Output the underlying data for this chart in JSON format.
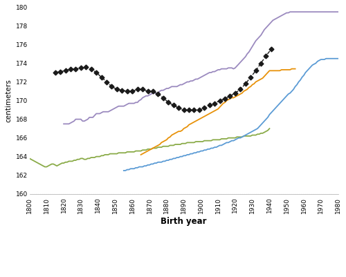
{
  "xlabel": "Birth year",
  "ylabel": "centimeters",
  "ylim": [
    160,
    180
  ],
  "xlim": [
    1800,
    1980
  ],
  "netherlands_color": "#c0736a",
  "italy_color": "#5b9bd5",
  "france_color": "#8aab48",
  "sweden_color": "#9b8abf",
  "us_soldiers_color": "#1a1a1a",
  "netherlands2_color": "#e8920a",
  "france": {
    "x": [
      1800,
      1801,
      1802,
      1803,
      1804,
      1805,
      1806,
      1807,
      1808,
      1809,
      1810,
      1811,
      1812,
      1813,
      1814,
      1815,
      1816,
      1817,
      1818,
      1819,
      1820,
      1821,
      1822,
      1823,
      1824,
      1825,
      1826,
      1827,
      1828,
      1829,
      1830,
      1831,
      1832,
      1833,
      1834,
      1835,
      1836,
      1837,
      1838,
      1839,
      1840,
      1841,
      1842,
      1843,
      1844,
      1845,
      1846,
      1847,
      1848,
      1849,
      1850,
      1851,
      1852,
      1853,
      1854,
      1855,
      1856,
      1857,
      1858,
      1859,
      1860,
      1861,
      1862,
      1863,
      1864,
      1865,
      1866,
      1867,
      1868,
      1869,
      1870,
      1871,
      1872,
      1873,
      1874,
      1875,
      1876,
      1877,
      1878,
      1879,
      1880,
      1881,
      1882,
      1883,
      1884,
      1885,
      1886,
      1887,
      1888,
      1889,
      1890,
      1891,
      1892,
      1893,
      1894,
      1895,
      1896,
      1897,
      1898,
      1899,
      1900,
      1901,
      1902,
      1903,
      1904,
      1905,
      1906,
      1907,
      1908,
      1909,
      1910,
      1911,
      1912,
      1913,
      1914,
      1915,
      1916,
      1917,
      1918,
      1919,
      1920,
      1921,
      1922,
      1923,
      1924,
      1925,
      1926,
      1927,
      1928,
      1929,
      1930,
      1931,
      1932,
      1933,
      1934,
      1935,
      1936,
      1937,
      1938,
      1939,
      1940
    ],
    "y": [
      163.8,
      163.7,
      163.6,
      163.5,
      163.4,
      163.3,
      163.2,
      163.1,
      163.0,
      162.9,
      162.9,
      163.0,
      163.1,
      163.2,
      163.2,
      163.1,
      163.0,
      163.1,
      163.2,
      163.3,
      163.3,
      163.4,
      163.4,
      163.5,
      163.5,
      163.5,
      163.6,
      163.6,
      163.7,
      163.7,
      163.8,
      163.8,
      163.7,
      163.7,
      163.8,
      163.8,
      163.9,
      163.9,
      163.9,
      164.0,
      164.0,
      164.0,
      164.1,
      164.1,
      164.2,
      164.2,
      164.2,
      164.3,
      164.3,
      164.3,
      164.3,
      164.3,
      164.4,
      164.4,
      164.4,
      164.4,
      164.4,
      164.5,
      164.5,
      164.5,
      164.5,
      164.5,
      164.6,
      164.6,
      164.6,
      164.6,
      164.7,
      164.7,
      164.7,
      164.8,
      164.8,
      164.8,
      164.9,
      164.9,
      164.9,
      165.0,
      165.0,
      165.0,
      165.1,
      165.1,
      165.1,
      165.1,
      165.2,
      165.2,
      165.2,
      165.3,
      165.3,
      165.3,
      165.3,
      165.4,
      165.4,
      165.4,
      165.5,
      165.5,
      165.5,
      165.5,
      165.5,
      165.6,
      165.6,
      165.6,
      165.6,
      165.6,
      165.7,
      165.7,
      165.7,
      165.7,
      165.7,
      165.8,
      165.8,
      165.8,
      165.8,
      165.8,
      165.9,
      165.9,
      165.9,
      165.9,
      166.0,
      166.0,
      166.0,
      166.0,
      166.0,
      166.1,
      166.1,
      166.1,
      166.1,
      166.2,
      166.2,
      166.2,
      166.2,
      166.2,
      166.3,
      166.3,
      166.3,
      166.4,
      166.4,
      166.5,
      166.5,
      166.6,
      166.7,
      166.8,
      167.0
    ]
  },
  "sweden": {
    "x": [
      1820,
      1821,
      1822,
      1823,
      1824,
      1825,
      1826,
      1827,
      1828,
      1829,
      1830,
      1831,
      1832,
      1833,
      1834,
      1835,
      1836,
      1837,
      1838,
      1839,
      1840,
      1841,
      1842,
      1843,
      1844,
      1845,
      1846,
      1847,
      1848,
      1849,
      1850,
      1851,
      1852,
      1853,
      1854,
      1855,
      1856,
      1857,
      1858,
      1859,
      1860,
      1861,
      1862,
      1863,
      1864,
      1865,
      1866,
      1867,
      1868,
      1869,
      1870,
      1871,
      1872,
      1873,
      1874,
      1875,
      1876,
      1877,
      1878,
      1879,
      1880,
      1881,
      1882,
      1883,
      1884,
      1885,
      1886,
      1887,
      1888,
      1889,
      1890,
      1891,
      1892,
      1893,
      1894,
      1895,
      1896,
      1897,
      1898,
      1899,
      1900,
      1901,
      1902,
      1903,
      1904,
      1905,
      1906,
      1907,
      1908,
      1909,
      1910,
      1911,
      1912,
      1913,
      1914,
      1915,
      1916,
      1917,
      1918,
      1919,
      1920,
      1921,
      1922,
      1923,
      1924,
      1925,
      1926,
      1927,
      1928,
      1929,
      1930,
      1931,
      1932,
      1933,
      1934,
      1935,
      1936,
      1937,
      1938,
      1939,
      1940,
      1941,
      1942,
      1943,
      1944,
      1945,
      1946,
      1947,
      1948,
      1949,
      1950,
      1951,
      1952,
      1953,
      1954,
      1955,
      1956,
      1957,
      1958,
      1959,
      1960,
      1965,
      1970,
      1975,
      1980
    ],
    "y": [
      167.5,
      167.5,
      167.5,
      167.5,
      167.6,
      167.7,
      167.8,
      168.0,
      168.0,
      168.0,
      168.0,
      167.8,
      167.8,
      167.9,
      168.0,
      168.2,
      168.2,
      168.2,
      168.4,
      168.6,
      168.6,
      168.6,
      168.7,
      168.8,
      168.8,
      168.8,
      168.8,
      168.9,
      169.0,
      169.1,
      169.2,
      169.3,
      169.4,
      169.4,
      169.4,
      169.4,
      169.5,
      169.6,
      169.7,
      169.7,
      169.7,
      169.7,
      169.8,
      169.8,
      170.0,
      170.1,
      170.3,
      170.4,
      170.5,
      170.5,
      170.6,
      170.7,
      170.8,
      170.8,
      170.8,
      170.8,
      171.0,
      171.1,
      171.1,
      171.2,
      171.3,
      171.3,
      171.4,
      171.5,
      171.5,
      171.5,
      171.5,
      171.6,
      171.7,
      171.7,
      171.8,
      171.9,
      172.0,
      172.0,
      172.1,
      172.1,
      172.2,
      172.3,
      172.3,
      172.4,
      172.5,
      172.6,
      172.7,
      172.8,
      172.9,
      173.0,
      173.0,
      173.1,
      173.1,
      173.2,
      173.3,
      173.3,
      173.4,
      173.4,
      173.4,
      173.4,
      173.5,
      173.5,
      173.5,
      173.4,
      173.5,
      173.7,
      173.9,
      174.1,
      174.3,
      174.5,
      174.7,
      175.0,
      175.2,
      175.5,
      175.8,
      176.1,
      176.4,
      176.6,
      176.8,
      177.0,
      177.3,
      177.6,
      177.8,
      178.0,
      178.2,
      178.4,
      178.6,
      178.7,
      178.8,
      178.9,
      179.0,
      179.1,
      179.2,
      179.3,
      179.4,
      179.4,
      179.5,
      179.5,
      179.5,
      179.5,
      179.5,
      179.5,
      179.5,
      179.5,
      179.5,
      179.5,
      179.5,
      179.5,
      179.5
    ]
  },
  "italy": {
    "x": [
      1855,
      1856,
      1857,
      1858,
      1859,
      1860,
      1861,
      1862,
      1863,
      1864,
      1865,
      1866,
      1867,
      1868,
      1869,
      1870,
      1871,
      1872,
      1873,
      1874,
      1875,
      1876,
      1877,
      1878,
      1879,
      1880,
      1881,
      1882,
      1883,
      1884,
      1885,
      1886,
      1887,
      1888,
      1889,
      1890,
      1891,
      1892,
      1893,
      1894,
      1895,
      1896,
      1897,
      1898,
      1899,
      1900,
      1901,
      1902,
      1903,
      1904,
      1905,
      1906,
      1907,
      1908,
      1909,
      1910,
      1911,
      1912,
      1913,
      1914,
      1915,
      1916,
      1917,
      1918,
      1919,
      1920,
      1921,
      1922,
      1923,
      1924,
      1925,
      1926,
      1927,
      1928,
      1929,
      1930,
      1931,
      1932,
      1933,
      1934,
      1935,
      1936,
      1937,
      1938,
      1939,
      1940,
      1941,
      1942,
      1943,
      1944,
      1945,
      1946,
      1947,
      1948,
      1949,
      1950,
      1951,
      1952,
      1953,
      1954,
      1955,
      1956,
      1957,
      1958,
      1959,
      1960,
      1961,
      1962,
      1963,
      1964,
      1965,
      1966,
      1967,
      1968,
      1969,
      1970,
      1971,
      1972,
      1973,
      1974,
      1975,
      1976,
      1977,
      1978,
      1979,
      1980
    ],
    "y": [
      162.5,
      162.5,
      162.6,
      162.6,
      162.7,
      162.7,
      162.7,
      162.8,
      162.8,
      162.9,
      162.9,
      162.9,
      163.0,
      163.0,
      163.1,
      163.1,
      163.2,
      163.2,
      163.3,
      163.3,
      163.4,
      163.4,
      163.4,
      163.5,
      163.5,
      163.6,
      163.6,
      163.7,
      163.7,
      163.8,
      163.8,
      163.9,
      163.9,
      164.0,
      164.0,
      164.1,
      164.1,
      164.2,
      164.2,
      164.3,
      164.3,
      164.4,
      164.4,
      164.5,
      164.5,
      164.6,
      164.6,
      164.7,
      164.7,
      164.8,
      164.8,
      164.9,
      164.9,
      165.0,
      165.0,
      165.1,
      165.2,
      165.2,
      165.3,
      165.4,
      165.5,
      165.5,
      165.6,
      165.7,
      165.7,
      165.8,
      165.9,
      166.0,
      166.0,
      166.1,
      166.2,
      166.3,
      166.4,
      166.5,
      166.6,
      166.7,
      166.8,
      166.9,
      167.0,
      167.2,
      167.4,
      167.6,
      167.8,
      168.0,
      168.2,
      168.5,
      168.7,
      168.9,
      169.1,
      169.3,
      169.5,
      169.7,
      169.9,
      170.1,
      170.3,
      170.5,
      170.7,
      170.8,
      171.0,
      171.2,
      171.5,
      171.7,
      172.0,
      172.2,
      172.5,
      172.7,
      173.0,
      173.2,
      173.4,
      173.6,
      173.8,
      173.9,
      174.0,
      174.2,
      174.3,
      174.4,
      174.4,
      174.4,
      174.5,
      174.5,
      174.5,
      174.5,
      174.5,
      174.5,
      174.5,
      174.5
    ]
  },
  "us_soldiers": {
    "x": [
      1815,
      1818,
      1821,
      1824,
      1827,
      1830,
      1833,
      1836,
      1839,
      1842,
      1845,
      1848,
      1851,
      1854,
      1857,
      1860,
      1863,
      1866,
      1869,
      1872,
      1875,
      1878,
      1881,
      1884,
      1887,
      1890,
      1893,
      1896,
      1899,
      1902,
      1905,
      1908,
      1911,
      1914,
      1917,
      1920,
      1923,
      1926,
      1929,
      1932,
      1935,
      1938,
      1941
    ],
    "y": [
      173.0,
      173.1,
      173.2,
      173.4,
      173.4,
      173.5,
      173.6,
      173.4,
      173.0,
      172.5,
      172.0,
      171.5,
      171.2,
      171.1,
      171.0,
      171.0,
      171.2,
      171.2,
      171.0,
      171.0,
      170.7,
      170.3,
      169.8,
      169.5,
      169.2,
      169.0,
      169.0,
      169.0,
      169.0,
      169.2,
      169.5,
      169.7,
      170.0,
      170.2,
      170.5,
      170.8,
      171.2,
      171.8,
      172.5,
      173.2,
      174.0,
      174.8,
      175.5
    ]
  },
  "netherlands_orange": {
    "x": [
      1865,
      1866,
      1867,
      1868,
      1869,
      1870,
      1871,
      1872,
      1873,
      1874,
      1875,
      1876,
      1877,
      1878,
      1879,
      1880,
      1881,
      1882,
      1883,
      1884,
      1885,
      1886,
      1887,
      1888,
      1889,
      1890,
      1891,
      1892,
      1893,
      1894,
      1895,
      1896,
      1897,
      1898,
      1899,
      1900,
      1901,
      1902,
      1903,
      1904,
      1905,
      1906,
      1907,
      1908,
      1909,
      1910,
      1911,
      1912,
      1913,
      1914,
      1915,
      1916,
      1917,
      1918,
      1919,
      1920,
      1921,
      1922,
      1923,
      1924,
      1925,
      1926,
      1927,
      1928,
      1929,
      1930,
      1931,
      1932,
      1933,
      1934,
      1935,
      1936,
      1937,
      1938,
      1939,
      1940,
      1941,
      1942,
      1943,
      1944,
      1945,
      1946,
      1947,
      1948,
      1949,
      1950,
      1951,
      1952,
      1953,
      1954,
      1955
    ],
    "y": [
      164.2,
      164.3,
      164.4,
      164.5,
      164.6,
      164.7,
      164.8,
      164.9,
      165.0,
      165.1,
      165.2,
      165.3,
      165.5,
      165.6,
      165.7,
      165.8,
      166.0,
      166.1,
      166.3,
      166.4,
      166.5,
      166.6,
      166.7,
      166.7,
      166.8,
      167.0,
      167.1,
      167.2,
      167.4,
      167.5,
      167.6,
      167.7,
      167.8,
      167.9,
      168.0,
      168.1,
      168.2,
      168.3,
      168.4,
      168.5,
      168.6,
      168.7,
      168.8,
      168.9,
      169.0,
      169.1,
      169.3,
      169.5,
      169.7,
      169.8,
      170.0,
      170.1,
      170.2,
      170.3,
      170.3,
      170.4,
      170.5,
      170.6,
      170.7,
      170.8,
      171.0,
      171.1,
      171.2,
      171.4,
      171.5,
      171.7,
      171.8,
      172.0,
      172.1,
      172.2,
      172.3,
      172.4,
      172.6,
      172.8,
      173.0,
      173.2,
      173.2,
      173.2,
      173.2,
      173.2,
      173.2,
      173.2,
      173.3,
      173.3,
      173.3,
      173.3,
      173.3,
      173.3,
      173.4,
      173.4,
      173.4
    ]
  }
}
